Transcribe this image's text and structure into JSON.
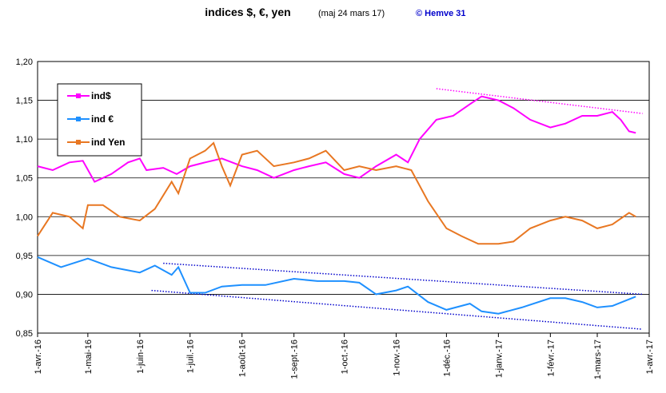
{
  "chart_data": {
    "type": "line",
    "title": "indices $, €, yen",
    "subtitle": "(maj 24 mars 17)",
    "annotations": [
      "© Hemve 31"
    ],
    "xlim": [
      "2016-04-01",
      "2017-04-01"
    ],
    "xticks": [
      {
        "value": "2016-04-01",
        "label": "1-avr.-16"
      },
      {
        "value": "2016-05-01",
        "label": "1-mai-16"
      },
      {
        "value": "2016-06-01",
        "label": "1-juin-16"
      },
      {
        "value": "2016-07-01",
        "label": "1-juil.-16"
      },
      {
        "value": "2016-08-01",
        "label": "1-août-16"
      },
      {
        "value": "2016-09-01",
        "label": "1-sept.-16"
      },
      {
        "value": "2016-10-01",
        "label": "1-oct.-16"
      },
      {
        "value": "2016-11-01",
        "label": "1-nov.-16"
      },
      {
        "value": "2016-12-01",
        "label": "1-déc.-16"
      },
      {
        "value": "2017-01-01",
        "label": "1-janv.-17"
      },
      {
        "value": "2017-02-01",
        "label": "1-févr.-17"
      },
      {
        "value": "2017-03-01",
        "label": "1-mars-17"
      },
      {
        "value": "2017-04-01",
        "label": "1-avr.-17"
      }
    ],
    "ylim": [
      0.85,
      1.2
    ],
    "yticks": [
      {
        "value": 0.85,
        "label": "0,85"
      },
      {
        "value": 0.9,
        "label": "0,90"
      },
      {
        "value": 0.95,
        "label": "0,95"
      },
      {
        "value": 1.0,
        "label": "1,00"
      },
      {
        "value": 1.05,
        "label": "1,05"
      },
      {
        "value": 1.1,
        "label": "1,10"
      },
      {
        "value": 1.15,
        "label": "1,15"
      },
      {
        "value": 1.2,
        "label": "1,20"
      }
    ],
    "grid": true,
    "legend": "upper left",
    "series": [
      {
        "name": "ind$",
        "color": "#ff00ff",
        "x": [
          "2016-04-01",
          "2016-04-10",
          "2016-04-20",
          "2016-04-28",
          "2016-05-05",
          "2016-05-15",
          "2016-05-25",
          "2016-06-01",
          "2016-06-05",
          "2016-06-15",
          "2016-06-23",
          "2016-07-01",
          "2016-07-10",
          "2016-07-20",
          "2016-08-01",
          "2016-08-10",
          "2016-08-20",
          "2016-09-01",
          "2016-09-10",
          "2016-09-20",
          "2016-10-01",
          "2016-10-10",
          "2016-10-20",
          "2016-11-01",
          "2016-11-08",
          "2016-11-15",
          "2016-11-25",
          "2016-12-05",
          "2016-12-15",
          "2016-12-22",
          "2017-01-01",
          "2017-01-10",
          "2017-01-20",
          "2017-02-01",
          "2017-02-10",
          "2017-02-20",
          "2017-03-01",
          "2017-03-10",
          "2017-03-15",
          "2017-03-20",
          "2017-03-24"
        ],
        "values": [
          1.065,
          1.06,
          1.07,
          1.072,
          1.045,
          1.055,
          1.07,
          1.075,
          1.06,
          1.063,
          1.055,
          1.065,
          1.07,
          1.075,
          1.065,
          1.06,
          1.05,
          1.06,
          1.065,
          1.07,
          1.055,
          1.05,
          1.065,
          1.08,
          1.07,
          1.1,
          1.125,
          1.13,
          1.145,
          1.155,
          1.15,
          1.14,
          1.125,
          1.115,
          1.12,
          1.13,
          1.13,
          1.135,
          1.125,
          1.11,
          1.108
        ]
      },
      {
        "name": "ind €",
        "color": "#1e90ff",
        "x": [
          "2016-04-01",
          "2016-04-15",
          "2016-05-01",
          "2016-05-15",
          "2016-06-01",
          "2016-06-10",
          "2016-06-20",
          "2016-06-24",
          "2016-07-01",
          "2016-07-10",
          "2016-07-20",
          "2016-08-01",
          "2016-08-15",
          "2016-09-01",
          "2016-09-15",
          "2016-10-01",
          "2016-10-10",
          "2016-10-20",
          "2016-11-01",
          "2016-11-08",
          "2016-11-20",
          "2016-12-01",
          "2016-12-15",
          "2016-12-22",
          "2017-01-01",
          "2017-01-15",
          "2017-02-01",
          "2017-02-10",
          "2017-02-20",
          "2017-03-01",
          "2017-03-10",
          "2017-03-24"
        ],
        "values": [
          0.948,
          0.935,
          0.946,
          0.935,
          0.928,
          0.937,
          0.925,
          0.935,
          0.902,
          0.902,
          0.91,
          0.912,
          0.912,
          0.92,
          0.917,
          0.917,
          0.915,
          0.9,
          0.905,
          0.91,
          0.89,
          0.88,
          0.888,
          0.878,
          0.875,
          0.883,
          0.895,
          0.895,
          0.89,
          0.883,
          0.885,
          0.897
        ]
      },
      {
        "name": "ind Yen",
        "color": "#e87722",
        "x": [
          "2016-04-01",
          "2016-04-10",
          "2016-04-20",
          "2016-04-28",
          "2016-05-01",
          "2016-05-10",
          "2016-05-20",
          "2016-06-01",
          "2016-06-10",
          "2016-06-20",
          "2016-06-24",
          "2016-07-01",
          "2016-07-10",
          "2016-07-15",
          "2016-07-20",
          "2016-07-25",
          "2016-08-01",
          "2016-08-10",
          "2016-08-20",
          "2016-09-01",
          "2016-09-10",
          "2016-09-20",
          "2016-10-01",
          "2016-10-10",
          "2016-10-20",
          "2016-11-01",
          "2016-11-10",
          "2016-11-20",
          "2016-12-01",
          "2016-12-10",
          "2016-12-20",
          "2017-01-01",
          "2017-01-10",
          "2017-01-20",
          "2017-02-01",
          "2017-02-10",
          "2017-02-20",
          "2017-03-01",
          "2017-03-10",
          "2017-03-20",
          "2017-03-24"
        ],
        "values": [
          0.975,
          1.005,
          1.0,
          0.985,
          1.015,
          1.015,
          1.0,
          0.995,
          1.01,
          1.045,
          1.03,
          1.075,
          1.085,
          1.095,
          1.065,
          1.04,
          1.08,
          1.085,
          1.065,
          1.07,
          1.075,
          1.085,
          1.06,
          1.065,
          1.06,
          1.065,
          1.06,
          1.02,
          0.985,
          0.975,
          0.965,
          0.965,
          0.968,
          0.985,
          0.995,
          1.0,
          0.995,
          0.985,
          0.99,
          1.005,
          1.0
        ]
      }
    ],
    "trend_lines": [
      {
        "color": "#ff00ff",
        "x": [
          "2016-11-25",
          "2017-03-28"
        ],
        "values": [
          1.165,
          1.133
        ]
      },
      {
        "color": "#0000cc",
        "x": [
          "2016-06-15",
          "2017-03-28"
        ],
        "values": [
          0.94,
          0.9
        ]
      },
      {
        "color": "#0000cc",
        "x": [
          "2016-06-08",
          "2017-03-28"
        ],
        "values": [
          0.905,
          0.855
        ]
      }
    ]
  }
}
